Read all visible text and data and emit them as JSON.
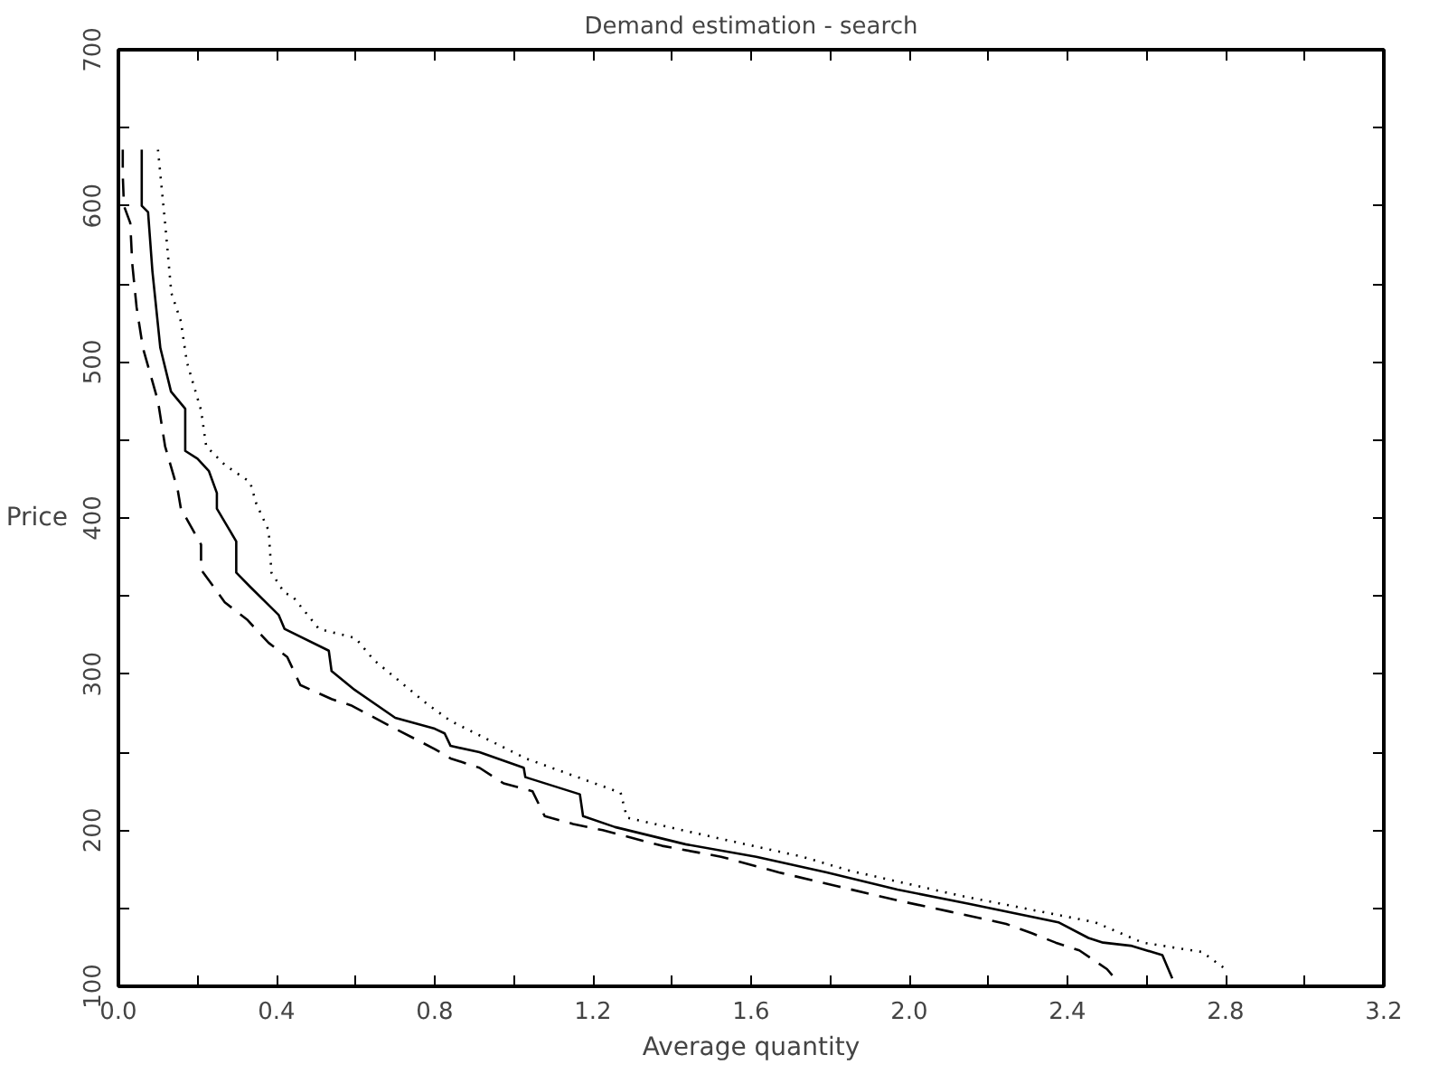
{
  "chart_data": {
    "type": "line",
    "title": "Demand estimation - search",
    "xlabel": "Average quantity",
    "ylabel": "Price",
    "xlim": [
      0,
      3.2
    ],
    "ylim": [
      100,
      700
    ],
    "xticks": [
      {
        "value": 0,
        "label": "0.0"
      },
      {
        "value": 0.2,
        "label": null
      },
      0.4,
      {
        "value": 0.6,
        "label": null
      },
      0.8,
      {
        "value": 1.0,
        "label": null
      },
      1.2,
      {
        "value": 1.4,
        "label": null
      },
      1.6,
      {
        "value": 1.8,
        "label": null
      },
      {
        "value": 2.0,
        "label": "2.0"
      },
      {
        "value": 2.2,
        "label": null
      },
      2.4,
      {
        "value": 2.6,
        "label": null
      },
      2.8,
      {
        "value": 3.0,
        "label": null
      },
      3.2
    ],
    "yticks": [
      100,
      {
        "value": 150,
        "label": null
      },
      200,
      {
        "value": 250,
        "label": null
      },
      300,
      {
        "value": 350,
        "label": null
      },
      400,
      {
        "value": 450,
        "label": null
      },
      500,
      {
        "value": 550,
        "label": null
      },
      600,
      {
        "value": 650,
        "label": null
      },
      700
    ],
    "grid": false,
    "series": [
      {
        "color": "#000000",
        "line_style": "solid",
        "x": [
          0.059,
          0.059,
          0.075,
          0.086,
          0.106,
          0.133,
          0.169,
          0.169,
          0.2,
          0.229,
          0.249,
          0.249,
          0.298,
          0.298,
          0.333,
          0.405,
          0.42,
          0.532,
          0.539,
          0.597,
          0.7,
          0.8,
          0.825,
          0.84,
          0.913,
          1.025,
          1.029,
          1.167,
          1.175,
          1.256,
          1.434,
          1.613,
          1.791,
          1.97,
          2.148,
          2.377,
          2.453,
          2.49,
          2.56,
          2.64,
          2.665
        ],
        "values": [
          636,
          600,
          596,
          558,
          509,
          481,
          470,
          443,
          438,
          430,
          416,
          406,
          385,
          365,
          356,
          338,
          329,
          315,
          302,
          290,
          272,
          265,
          262,
          254,
          250,
          240,
          234,
          223,
          209,
          202,
          191,
          183,
          173,
          162,
          153,
          141,
          131,
          128,
          126,
          120,
          105
        ]
      },
      {
        "color": "#000000",
        "line_style": "dashed",
        "x": [
          0.011,
          0.011,
          0.014,
          0.03,
          0.035,
          0.046,
          0.062,
          0.1,
          0.118,
          0.15,
          0.158,
          0.209,
          0.209,
          0.269,
          0.325,
          0.38,
          0.427,
          0.46,
          0.539,
          0.588,
          0.7,
          0.8,
          0.84,
          0.913,
          0.974,
          1.047,
          1.078,
          1.15,
          1.225,
          1.375,
          1.524,
          1.67,
          1.82,
          1.97,
          2.1,
          2.245,
          2.31,
          2.37,
          2.43,
          2.5,
          2.52
        ],
        "values": [
          636,
          620,
          600,
          589,
          563,
          535,
          509,
          475,
          446,
          418,
          406,
          383,
          367,
          346,
          335,
          320,
          311,
          293,
          284,
          280,
          265,
          252,
          246,
          240,
          230,
          225,
          209,
          204,
          200,
          190,
          183,
          173,
          164,
          155,
          148,
          140,
          134,
          128,
          123,
          111,
          105
        ]
      },
      {
        "color": "#000000",
        "line_style": "dotted",
        "x": [
          0.1,
          0.118,
          0.134,
          0.158,
          0.173,
          0.209,
          0.222,
          0.269,
          0.333,
          0.349,
          0.38,
          0.387,
          0.42,
          0.44,
          0.507,
          0.6,
          0.646,
          0.78,
          0.84,
          1.03,
          1.27,
          1.286,
          1.55,
          1.73,
          1.85,
          2.13,
          2.47,
          2.59,
          2.74,
          2.8
        ],
        "values": [
          636,
          589,
          544,
          526,
          500,
          469,
          446,
          434,
          423,
          409,
          392,
          365,
          352,
          350,
          329,
          323,
          309,
          281,
          270,
          246,
          224,
          208,
          193,
          183,
          174,
          158,
          141,
          128,
          122,
          111
        ]
      }
    ]
  }
}
